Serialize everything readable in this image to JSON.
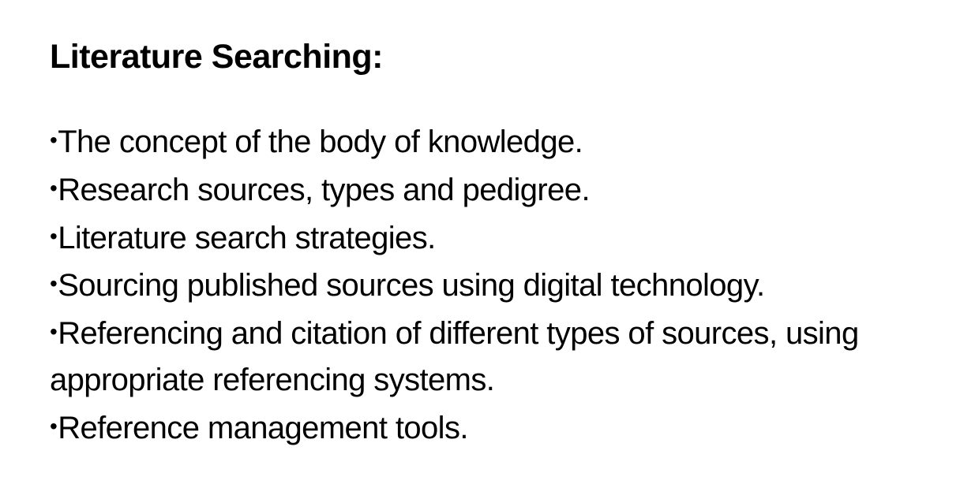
{
  "slide": {
    "title": "Literature Searching:",
    "bullet_symbol": "•",
    "bullets": [
      "The concept of the body of knowledge.",
      "Research sources, types and pedigree.",
      "Literature search strategies.",
      "Sourcing published sources using digital technology.",
      "Referencing and citation of different types of sources, using appropriate referencing systems.",
      "Reference management tools."
    ]
  }
}
